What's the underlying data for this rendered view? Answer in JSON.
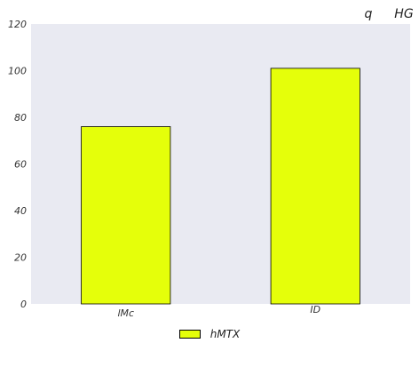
{
  "chart_data": {
    "type": "bar",
    "title_parts": [
      "q",
      "HG"
    ],
    "categories": [
      "lMc",
      "ID"
    ],
    "series": [
      {
        "name": "hMTX",
        "values": [
          76,
          101
        ]
      }
    ],
    "ylim": [
      0,
      120
    ],
    "yticks": [
      0,
      20,
      40,
      60,
      80,
      100,
      120
    ],
    "grid": false,
    "legend_position": "bottom-center",
    "colors": {
      "bar": "#e5ff0a",
      "bar_edge": "#000000",
      "plot_background": "#e9eaf2"
    }
  }
}
